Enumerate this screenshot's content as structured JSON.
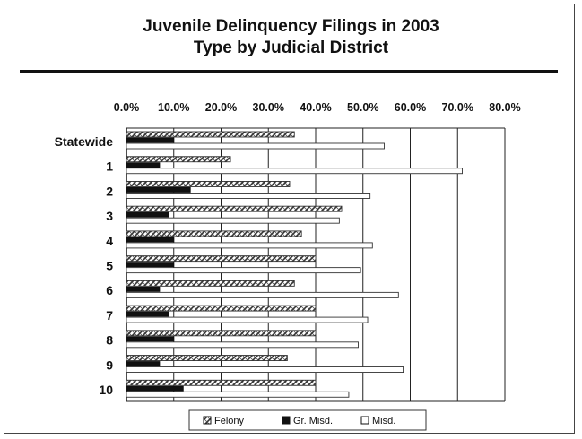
{
  "chart_data": {
    "type": "bar",
    "orientation": "horizontal",
    "title": "Juvenile Delinquency Filings in 2003",
    "subtitle": "Type by Judicial District",
    "categories": [
      "Statewide",
      "1",
      "2",
      "3",
      "4",
      "5",
      "6",
      "7",
      "8",
      "9",
      "10"
    ],
    "series": [
      {
        "name": "Felony",
        "values": [
          35.5,
          22.0,
          34.5,
          45.5,
          37.0,
          40.0,
          35.5,
          40.0,
          40.0,
          34.0,
          40.0
        ]
      },
      {
        "name": "Gr. Misd.",
        "values": [
          10.0,
          7.0,
          13.5,
          9.0,
          10.0,
          10.0,
          7.0,
          9.0,
          10.0,
          7.0,
          12.0
        ]
      },
      {
        "name": "Misd.",
        "values": [
          54.5,
          71.0,
          51.5,
          45.0,
          52.0,
          49.5,
          57.5,
          51.0,
          49.0,
          58.5,
          47.0
        ]
      }
    ],
    "xlim": [
      0,
      80
    ],
    "xticks": [
      "0.0%",
      "10.0%",
      "20.0%",
      "30.0%",
      "40.0%",
      "50.0%",
      "60.0%",
      "70.0%",
      "80.0%"
    ],
    "grid": true,
    "legend_position": "bottom",
    "colors": {
      "felony": "#6a6a6a",
      "gr_misd": "#111111",
      "misd": "#ffffff"
    }
  }
}
